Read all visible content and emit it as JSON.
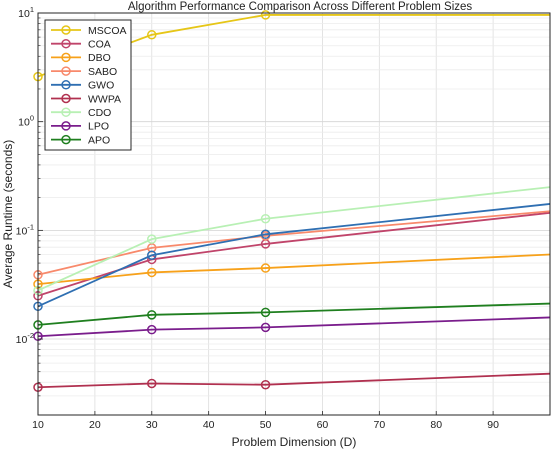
{
  "chart_data": {
    "type": "line",
    "title": "Algorithm Performance Comparison Across Different Problem Sizes",
    "xlabel": "Problem Dimension (D)",
    "ylabel": "Average Runtime (seconds)",
    "xlim": [
      10,
      100
    ],
    "ylim": [
      0.002,
      10
    ],
    "yscale": "log",
    "grid": true,
    "legend_position": "top-left",
    "x_ticks": [
      "10",
      "20",
      "30",
      "40",
      "50",
      "60",
      "70",
      "80",
      "90"
    ],
    "y_ticks": [
      {
        "base": "10",
        "exp": "-2",
        "value": 0.01
      },
      {
        "base": "10",
        "exp": "-1",
        "value": 0.1
      },
      {
        "base": "10",
        "exp": "0",
        "value": 1
      },
      {
        "base": "10",
        "exp": "1",
        "value": 10
      }
    ],
    "marker_x": [
      10,
      30,
      50
    ],
    "series": [
      {
        "name": "MSCOA",
        "color": "#e6c617",
        "x": [
          10,
          30,
          50,
          100
        ],
        "values": [
          2.6,
          6.3,
          9.6,
          9.6
        ]
      },
      {
        "name": "COA",
        "color": "#c0446a",
        "x": [
          10,
          30,
          50,
          100
        ],
        "values": [
          0.025,
          0.054,
          0.075,
          0.145
        ]
      },
      {
        "name": "DBO",
        "color": "#f7a11a",
        "x": [
          10,
          30,
          50,
          100
        ],
        "values": [
          0.032,
          0.041,
          0.045,
          0.06
        ]
      },
      {
        "name": "SABO",
        "color": "#f8896b",
        "x": [
          10,
          30,
          50,
          100
        ],
        "values": [
          0.039,
          0.069,
          0.089,
          0.15
        ]
      },
      {
        "name": "GWO",
        "color": "#2f6fb2",
        "x": [
          10,
          30,
          50,
          100
        ],
        "values": [
          0.02,
          0.059,
          0.092,
          0.175
        ]
      },
      {
        "name": "WWPA",
        "color": "#b0304f",
        "x": [
          10,
          30,
          50,
          100
        ],
        "values": [
          0.0036,
          0.0039,
          0.0038,
          0.0048
        ]
      },
      {
        "name": "CDO",
        "color": "#b8f0b4",
        "x": [
          10,
          30,
          50,
          100
        ],
        "values": [
          0.028,
          0.083,
          0.128,
          0.25
        ]
      },
      {
        "name": "LPO",
        "color": "#7a1d8c",
        "x": [
          10,
          30,
          50,
          100
        ],
        "values": [
          0.0106,
          0.0122,
          0.0128,
          0.0158
        ]
      },
      {
        "name": "APO",
        "color": "#1f7f1f",
        "x": [
          10,
          30,
          50,
          100
        ],
        "values": [
          0.0135,
          0.0167,
          0.0176,
          0.0212
        ]
      }
    ]
  }
}
